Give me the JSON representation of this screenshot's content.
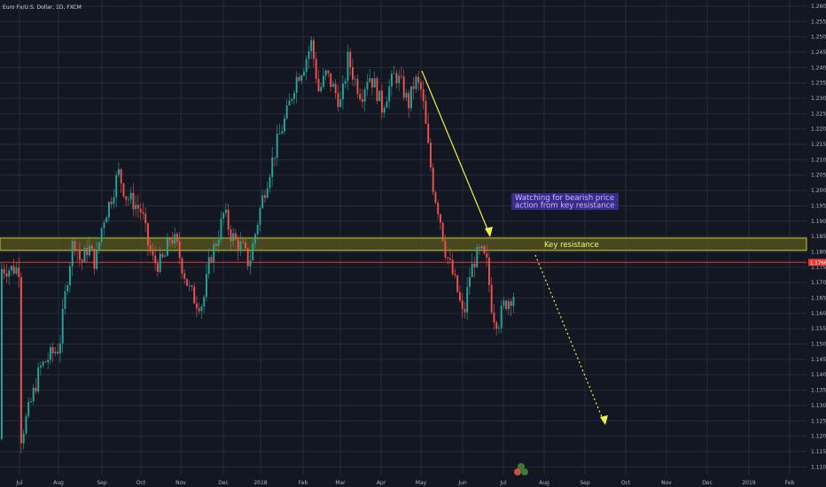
{
  "header": {
    "symbol_title": "Euro Fx/U.S. Dollar, 1D, FXCM"
  },
  "colors": {
    "background": "#131722",
    "grid": "#262b3a",
    "up_candle": "#26a69a",
    "down_candle": "#ef5350",
    "resistance_zone": "#5a5a1e",
    "resistance_border": "#c8c83a",
    "price_line": "#e53935",
    "arrow": "#f0f04a",
    "note_bg": "#3a2a8a"
  },
  "chart_data": {
    "type": "candlestick",
    "title": "Euro Fx/U.S. Dollar, 1D, FXCM",
    "x_labels": [
      "Jul",
      "Aug",
      "Sep",
      "Oct",
      "Nov",
      "Dec",
      "2018",
      "Feb",
      "Mar",
      "Apr",
      "May",
      "Jun",
      "Jul",
      "Aug",
      "Sep",
      "Oct",
      "Nov",
      "Dec",
      "2019",
      "Feb"
    ],
    "y_ticks": [
      "1.26000",
      "1.25500",
      "1.25000",
      "1.24500",
      "1.24000",
      "1.23500",
      "1.23000",
      "1.22500",
      "1.22000",
      "1.21500",
      "1.21000",
      "1.20500",
      "1.20000",
      "1.19500",
      "1.19000",
      "1.18500",
      "1.18000",
      "1.17500",
      "1.17000",
      "1.16500",
      "1.16000",
      "1.15500",
      "1.15000",
      "1.14500",
      "1.14000",
      "1.13500",
      "1.13000",
      "1.12500",
      "1.12000",
      "1.11500",
      "1.11000"
    ],
    "ylim": [
      1.1075,
      1.262
    ],
    "current_price": 1.1766,
    "resistance_zone": {
      "low": 1.1805,
      "high": 1.1845,
      "label": "Key resistance"
    },
    "annotation": {
      "lines": [
        "Watching for bearish price",
        "action from key resistance"
      ]
    },
    "series": [
      {
        "month": "Jul",
        "path": [
          1.119,
          1.13,
          1.142,
          1.146,
          1.149
        ]
      },
      {
        "month": "Aug",
        "path": [
          1.149,
          1.17,
          1.185,
          1.176,
          1.182,
          1.176,
          1.19
        ]
      },
      {
        "month": "Sep",
        "path": [
          1.19,
          1.197,
          1.206,
          1.198,
          1.196,
          1.193
        ]
      },
      {
        "month": "Oct",
        "path": [
          1.193,
          1.183,
          1.177,
          1.176,
          1.178,
          1.185,
          1.183,
          1.176
        ]
      },
      {
        "month": "Nov",
        "path": [
          1.176,
          1.168,
          1.164,
          1.163,
          1.178,
          1.184,
          1.193
        ]
      },
      {
        "month": "Dec",
        "path": [
          1.193,
          1.186,
          1.183,
          1.181,
          1.176,
          1.186,
          1.196
        ]
      },
      {
        "month": "2018",
        "path": [
          1.196,
          1.207,
          1.217,
          1.225,
          1.236,
          1.241
        ]
      },
      {
        "month": "Feb",
        "path": [
          1.241,
          1.248,
          1.232,
          1.238,
          1.233,
          1.228
        ]
      },
      {
        "month": "Mar",
        "path": [
          1.228,
          1.243,
          1.236,
          1.231,
          1.238,
          1.234,
          1.227
        ]
      },
      {
        "month": "Apr",
        "path": [
          1.227,
          1.233,
          1.238,
          1.234,
          1.228,
          1.236,
          1.232
        ]
      },
      {
        "month": "May",
        "path": [
          1.232,
          1.215,
          1.2,
          1.192,
          1.18,
          1.174,
          1.167,
          1.158
        ]
      },
      {
        "month": "Jun",
        "path": [
          1.158,
          1.172,
          1.178,
          1.18,
          1.176,
          1.16,
          1.157,
          1.163
        ]
      },
      {
        "month": "Jul",
        "path": [
          1.163,
          1.17,
          1.176
        ]
      }
    ]
  }
}
